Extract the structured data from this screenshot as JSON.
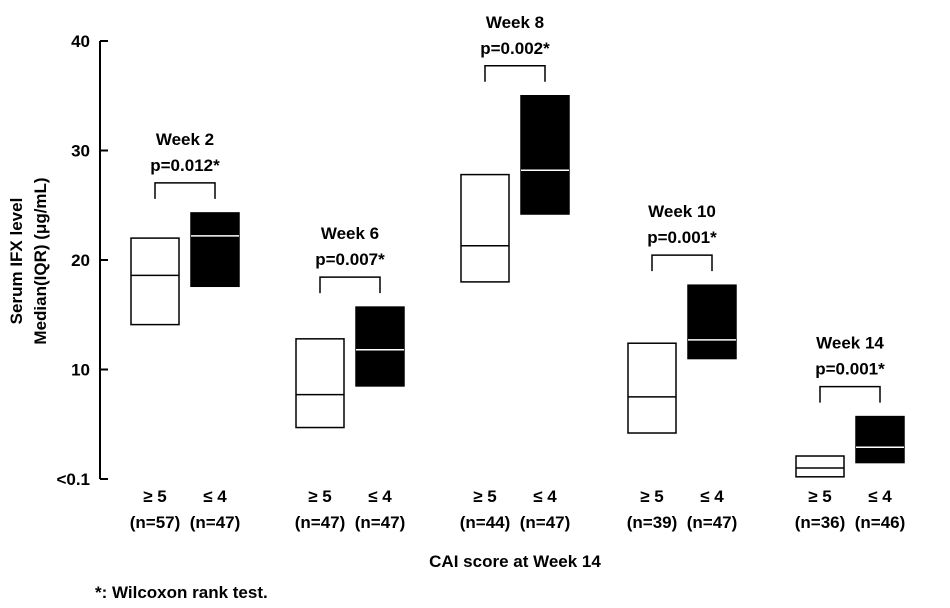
{
  "chart_data": {
    "type": "box",
    "ylabel_line1": "Serum IFX level",
    "ylabel_line2": "Median(IQR) (μg/mL)",
    "xlabel": "CAI score at Week 14",
    "ylim": [
      0,
      40
    ],
    "yticks": [
      {
        "value": 0,
        "label": "<0.1"
      },
      {
        "value": 10,
        "label": "10"
      },
      {
        "value": 20,
        "label": "20"
      },
      {
        "value": 30,
        "label": "30"
      },
      {
        "value": 40,
        "label": "40"
      }
    ],
    "footnote": "*: Wilcoxon rank test.",
    "legend": "none",
    "grid": false,
    "groups": [
      {
        "week": "Week 2",
        "p": "p=0.012*",
        "boxes": [
          {
            "category": "≥ 5",
            "n": "(n=57)",
            "q1": 14.1,
            "median": 18.6,
            "q3": 22.0,
            "fill": "#ffffff"
          },
          {
            "category": "≤ 4",
            "n": "(n=47)",
            "q1": 17.6,
            "median": 22.2,
            "q3": 24.3,
            "fill": "#000000"
          }
        ]
      },
      {
        "week": "Week 6",
        "p": "p=0.007*",
        "boxes": [
          {
            "category": "≥ 5",
            "n": "(n=47)",
            "q1": 4.7,
            "median": 7.7,
            "q3": 12.8,
            "fill": "#ffffff"
          },
          {
            "category": "≤ 4",
            "n": "(n=47)",
            "q1": 8.5,
            "median": 11.8,
            "q3": 15.7,
            "fill": "#000000"
          }
        ]
      },
      {
        "week": "Week 8",
        "p": "p=0.002*",
        "boxes": [
          {
            "category": "≥ 5",
            "n": "(n=44)",
            "q1": 18.0,
            "median": 21.3,
            "q3": 27.8,
            "fill": "#ffffff"
          },
          {
            "category": "≤ 4",
            "n": "(n=47)",
            "q1": 24.2,
            "median": 28.2,
            "q3": 35.0,
            "fill": "#000000"
          }
        ]
      },
      {
        "week": "Week 10",
        "p": "p=0.001*",
        "boxes": [
          {
            "category": "≥ 5",
            "n": "(n=39)",
            "q1": 4.2,
            "median": 7.5,
            "q3": 12.4,
            "fill": "#ffffff"
          },
          {
            "category": "≤ 4",
            "n": "(n=47)",
            "q1": 11.0,
            "median": 12.7,
            "q3": 17.7,
            "fill": "#000000"
          }
        ]
      },
      {
        "week": "Week 14",
        "p": "p=0.001*",
        "boxes": [
          {
            "category": "≥ 5",
            "n": "(n=36)",
            "q1": 0.2,
            "median": 1.0,
            "q3": 2.1,
            "fill": "#ffffff"
          },
          {
            "category": "≤ 4",
            "n": "(n=46)",
            "q1": 1.5,
            "median": 2.9,
            "q3": 5.7,
            "fill": "#000000"
          }
        ]
      }
    ]
  }
}
